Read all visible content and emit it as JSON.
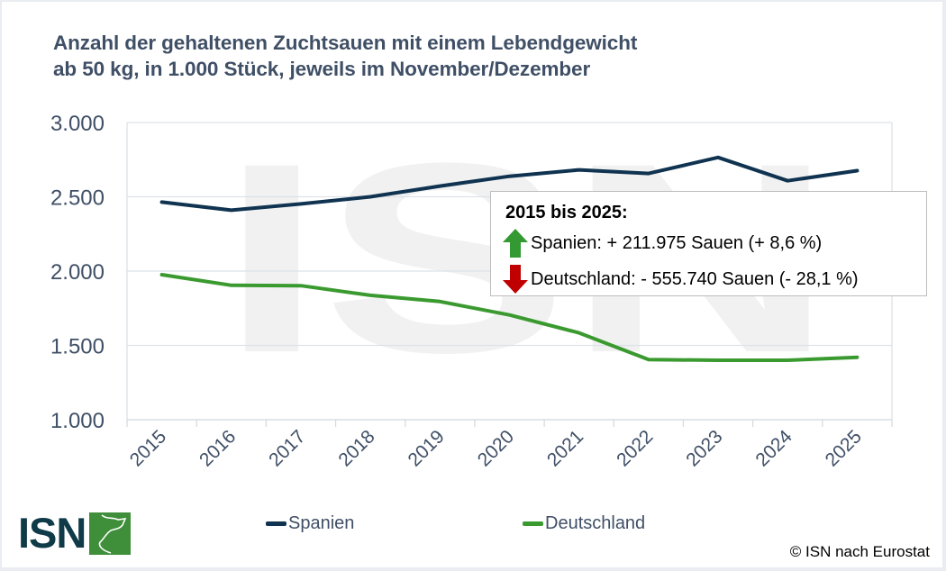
{
  "chart_data": {
    "type": "line",
    "title": "Anzahl der gehaltenen Zuchtsauen mit einem Lebendgewicht ab 50 kg, in 1.000 Stück, jeweils im November/Dezember",
    "title_lines": [
      "Anzahl der gehaltenen Zuchtsauen mit einem Lebendgewicht",
      "ab 50 kg, in 1.000 Stück, jeweils im November/Dezember"
    ],
    "xlabel": "",
    "ylabel": "",
    "categories": [
      "2015",
      "2016",
      "2017",
      "2018",
      "2019",
      "2020",
      "2021",
      "2022",
      "2023",
      "2024",
      "2025"
    ],
    "ylim": [
      1000,
      3000
    ],
    "yticks": [
      1000,
      1500,
      2000,
      2500,
      3000
    ],
    "ytick_labels": [
      "1.000",
      "1.500",
      "2.000",
      "2.500",
      "3.000"
    ],
    "grid": true,
    "legend_position": "bottom",
    "series": [
      {
        "name": "Spanien",
        "color": "#0f3350",
        "values": [
          2464,
          2410,
          2452,
          2500,
          2572,
          2638,
          2681,
          2657,
          2765,
          2608,
          2676
        ]
      },
      {
        "name": "Deutschland",
        "color": "#3a9a2f",
        "values": [
          1976,
          1904,
          1902,
          1837,
          1795,
          1705,
          1584,
          1404,
          1400,
          1400,
          1420
        ]
      }
    ],
    "annotation": {
      "heading": "2015 bis 2025:",
      "spain": "Spanien: + 211.975 Sauen (+ 8,6 %)",
      "germany": "Deutschland: - 555.740 Sauen (- 28,1 %)",
      "spain_arrow": "arrow-up-icon",
      "germany_arrow": "arrow-down-icon",
      "up_color": "#339933",
      "down_color": "#c00000"
    }
  },
  "legend": {
    "spain": "Spanien",
    "germany": "Deutschland"
  },
  "watermark": "ISN",
  "logo": {
    "text": "ISN",
    "icon": "pig-silhouette-icon",
    "color": "#0f3a47",
    "accent": "#3f8e3a"
  },
  "source": "© ISN nach Eurostat"
}
